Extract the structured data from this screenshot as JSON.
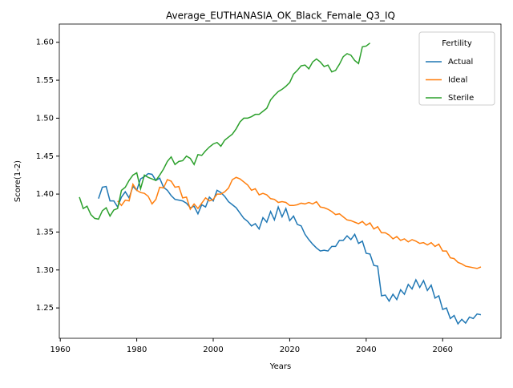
{
  "chart_data": {
    "type": "line",
    "title": "Average_EUTHANASIA_OK_Black_Female_Q3_IQ",
    "xlabel": "Years",
    "ylabel": "Score(1-2)",
    "legend_title": "Fertility",
    "legend_position": "upper right",
    "grid": false,
    "x": [
      1965,
      1966,
      1967,
      1968,
      1969,
      1970,
      1971,
      1972,
      1973,
      1974,
      1975,
      1976,
      1977,
      1978,
      1979,
      1980,
      1981,
      1982,
      1983,
      1984,
      1985,
      1986,
      1987,
      1988,
      1989,
      1990,
      1991,
      1992,
      1993,
      1994,
      1995,
      1996,
      1997,
      1998,
      1999,
      2000,
      2001,
      2002,
      2003,
      2004,
      2005,
      2006,
      2007,
      2008,
      2009,
      2010,
      2011,
      2012,
      2013,
      2014,
      2015,
      2016,
      2017,
      2018,
      2019,
      2020,
      2021,
      2022,
      2023,
      2024,
      2025,
      2026,
      2027,
      2028,
      2029,
      2030,
      2031,
      2032,
      2033,
      2034,
      2035,
      2036,
      2037,
      2038,
      2039,
      2040,
      2041,
      2042,
      2043,
      2044,
      2045,
      2046,
      2047,
      2048,
      2049,
      2050,
      2051,
      2052,
      2053,
      2054,
      2055,
      2056,
      2057,
      2058,
      2059,
      2060,
      2061,
      2062,
      2063,
      2064,
      2065,
      2066,
      2067,
      2068,
      2069,
      2070
    ],
    "series": [
      {
        "name": "Actual",
        "color": "#1f77b4",
        "values": [
          null,
          null,
          null,
          null,
          null,
          1.394,
          1.409,
          1.41,
          1.391,
          1.391,
          1.383,
          1.396,
          1.403,
          1.395,
          1.41,
          1.405,
          1.42,
          1.423,
          1.427,
          1.426,
          1.418,
          1.421,
          1.409,
          1.405,
          1.398,
          1.393,
          1.392,
          1.391,
          1.388,
          1.382,
          1.384,
          1.374,
          1.386,
          1.383,
          1.396,
          1.391,
          1.405,
          1.402,
          1.397,
          1.39,
          1.386,
          1.382,
          1.375,
          1.368,
          1.364,
          1.358,
          1.361,
          1.354,
          1.369,
          1.363,
          1.377,
          1.366,
          1.383,
          1.37,
          1.381,
          1.365,
          1.371,
          1.36,
          1.358,
          1.347,
          1.34,
          1.334,
          1.329,
          1.325,
          1.326,
          1.325,
          1.331,
          1.331,
          1.339,
          1.339,
          1.345,
          1.34,
          1.347,
          1.335,
          1.338,
          1.322,
          1.321,
          1.306,
          1.305,
          1.266,
          1.267,
          1.259,
          1.268,
          1.261,
          1.274,
          1.268,
          1.281,
          1.275,
          1.287,
          1.277,
          1.286,
          1.273,
          1.28,
          1.263,
          1.266,
          1.248,
          1.25,
          1.236,
          1.24,
          1.229,
          1.235,
          1.23,
          1.238,
          1.236,
          1.242,
          1.241
        ]
      },
      {
        "name": "Ideal",
        "color": "#ff7f0e",
        "values": [
          null,
          null,
          null,
          null,
          null,
          null,
          null,
          null,
          null,
          null,
          1.391,
          1.385,
          1.392,
          1.391,
          1.413,
          1.405,
          1.402,
          1.401,
          1.397,
          1.387,
          1.393,
          1.409,
          1.408,
          1.419,
          1.417,
          1.409,
          1.41,
          1.395,
          1.396,
          1.38,
          1.387,
          1.381,
          1.388,
          1.395,
          1.391,
          1.393,
          1.4,
          1.4,
          1.403,
          1.408,
          1.419,
          1.422,
          1.42,
          1.416,
          1.412,
          1.405,
          1.407,
          1.399,
          1.401,
          1.399,
          1.394,
          1.393,
          1.389,
          1.39,
          1.389,
          1.385,
          1.385,
          1.386,
          1.388,
          1.387,
          1.389,
          1.387,
          1.39,
          1.383,
          1.382,
          1.38,
          1.377,
          1.373,
          1.374,
          1.37,
          1.366,
          1.365,
          1.363,
          1.361,
          1.364,
          1.359,
          1.362,
          1.354,
          1.357,
          1.349,
          1.349,
          1.346,
          1.341,
          1.344,
          1.339,
          1.341,
          1.337,
          1.34,
          1.338,
          1.335,
          1.336,
          1.333,
          1.336,
          1.331,
          1.334,
          1.325,
          1.325,
          1.316,
          1.315,
          1.31,
          1.308,
          1.305,
          1.304,
          1.303,
          1.302,
          1.304
        ]
      },
      {
        "name": "Sterile",
        "color": "#2ca02c",
        "values": [
          1.396,
          1.381,
          1.384,
          1.373,
          1.368,
          1.367,
          1.378,
          1.382,
          1.371,
          1.379,
          1.381,
          1.405,
          1.409,
          1.418,
          1.425,
          1.428,
          1.407,
          1.425,
          1.422,
          1.42,
          1.418,
          1.425,
          1.433,
          1.443,
          1.449,
          1.439,
          1.443,
          1.444,
          1.45,
          1.447,
          1.439,
          1.452,
          1.451,
          1.457,
          1.462,
          1.466,
          1.468,
          1.463,
          1.471,
          1.475,
          1.479,
          1.486,
          1.495,
          1.5,
          1.5,
          1.502,
          1.505,
          1.505,
          1.509,
          1.513,
          1.524,
          1.53,
          1.535,
          1.538,
          1.542,
          1.547,
          1.558,
          1.563,
          1.569,
          1.57,
          1.565,
          1.574,
          1.578,
          1.574,
          1.568,
          1.57,
          1.561,
          1.563,
          1.571,
          1.581,
          1.585,
          1.583,
          1.576,
          1.572,
          1.594,
          1.595,
          1.599,
          null,
          null,
          null,
          null,
          null,
          null,
          null,
          null,
          null,
          null,
          null,
          null,
          null,
          null,
          null,
          null,
          null,
          null,
          null,
          null,
          null,
          null,
          null,
          null,
          null,
          null,
          null,
          null,
          null
        ]
      }
    ],
    "xlim": [
      1959.75,
      2075.25
    ],
    "ylim": [
      1.21,
      1.624
    ],
    "xticks": [
      1960,
      1980,
      2000,
      2020,
      2040,
      2060
    ],
    "yticks": [
      1.25,
      {
        "value": 1.3,
        "label": "1.30"
      },
      1.35,
      {
        "value": 1.4,
        "label": "1.40"
      },
      1.45,
      {
        "value": 1.5,
        "label": "1.50"
      },
      1.55,
      {
        "value": 1.6,
        "label": "1.60"
      }
    ]
  }
}
